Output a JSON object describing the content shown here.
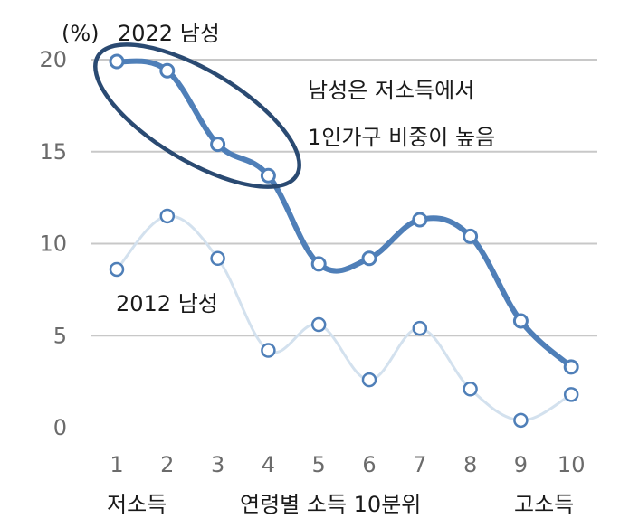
{
  "chart_data": {
    "type": "line",
    "x": [
      1,
      2,
      3,
      4,
      5,
      6,
      7,
      8,
      9,
      10
    ],
    "y_unit": "(%)",
    "ylim": [
      0,
      20
    ],
    "yticks": [
      0,
      5,
      10,
      15,
      20
    ],
    "grid": true,
    "x_caption_left": "저소득",
    "x_caption_center": "연령별 소득 10분위",
    "x_caption_right": "고소득",
    "series": [
      {
        "name": "2022 남성",
        "color": "#4f7fb8",
        "values": [
          19.9,
          19.4,
          15.4,
          13.7,
          8.9,
          9.2,
          11.3,
          10.4,
          5.8,
          3.3
        ]
      },
      {
        "name": "2012 남성",
        "color": "#d3e1ee",
        "values": [
          8.6,
          11.5,
          9.2,
          4.2,
          5.6,
          2.6,
          5.4,
          2.1,
          0.4,
          1.8
        ]
      }
    ],
    "annotation": {
      "lines": [
        "남성은 저소득에서",
        "1인가구 비중이 높음"
      ],
      "ellipse_color": "#2a4a72"
    }
  }
}
